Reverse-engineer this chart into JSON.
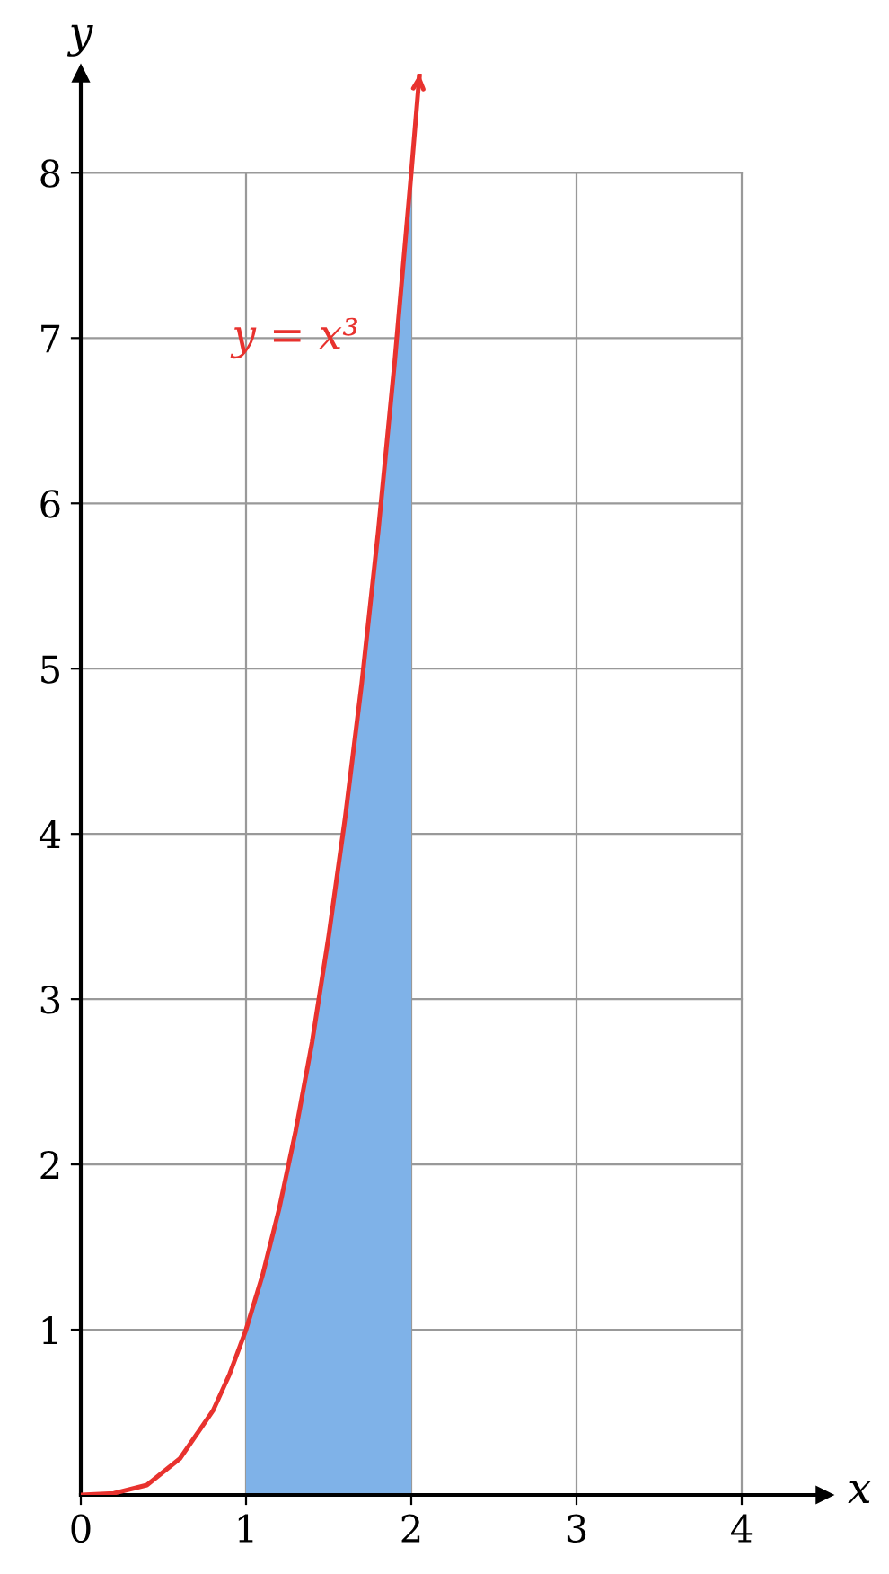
{
  "chart_data": {
    "type": "line",
    "xlabel": "x",
    "ylabel": "y",
    "xlim": [
      0,
      4.5
    ],
    "ylim": [
      0,
      8.6
    ],
    "xticks": [
      0,
      1,
      2,
      3,
      4
    ],
    "yticks": [
      1,
      2,
      3,
      4,
      5,
      6,
      7,
      8
    ],
    "grid": true,
    "series": [
      {
        "type": "area",
        "color": "#7fb2e8",
        "x": [
          1,
          1.1,
          1.2,
          1.3,
          1.4,
          1.5,
          1.6,
          1.7,
          1.8,
          1.9,
          2.0
        ],
        "values": [
          1,
          1.33,
          1.73,
          2.2,
          2.74,
          3.38,
          4.1,
          4.91,
          5.83,
          6.86,
          8
        ]
      },
      {
        "color": "#e8322e",
        "x": [
          0,
          0.2,
          0.4,
          0.6,
          0.8,
          0.9,
          1.0,
          1.1,
          1.2,
          1.3,
          1.4,
          1.5,
          1.6,
          1.7,
          1.8,
          1.9,
          2.0,
          2.05
        ],
        "values": [
          0,
          0.01,
          0.06,
          0.22,
          0.51,
          0.73,
          1,
          1.33,
          1.73,
          2.2,
          2.74,
          3.38,
          4.1,
          4.91,
          5.83,
          6.86,
          8,
          8.6
        ]
      }
    ],
    "annotations": [
      "y = x³"
    ]
  }
}
